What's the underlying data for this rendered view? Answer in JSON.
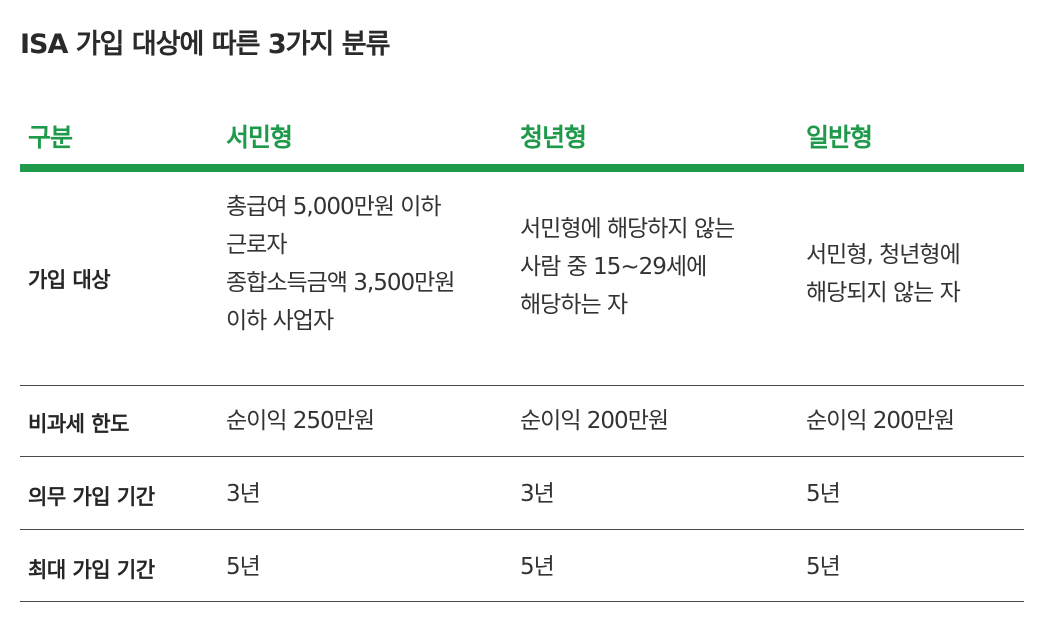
{
  "title": "ISA 가입 대상에 따른 3가지 분류",
  "header": {
    "col0": "구분",
    "col1": "서민형",
    "col2": "청년형",
    "col3": "일반형"
  },
  "rows": [
    {
      "label": "가입 대상",
      "c1": [
        "총급여 5,000만원 이하",
        "근로자",
        "종합소득금액 3,500만원",
        "이하 사업자"
      ],
      "c2": [
        "서민형에 해당하지 않는",
        "사람 중 15~29세에",
        "해당하는 자"
      ],
      "c3": [
        "서민형, 청년형에",
        "해당되지 않는 자"
      ]
    },
    {
      "label": "비과세 한도",
      "c1": "순이익 250만원",
      "c2": "순이익 200만원",
      "c3": "순이익 200만원"
    },
    {
      "label": "의무 가입 기간",
      "c1": "3년",
      "c2": "3년",
      "c3": "5년"
    },
    {
      "label": "최대 가입 기간",
      "c1": "5년",
      "c2": "5년",
      "c3": "5년"
    }
  ]
}
